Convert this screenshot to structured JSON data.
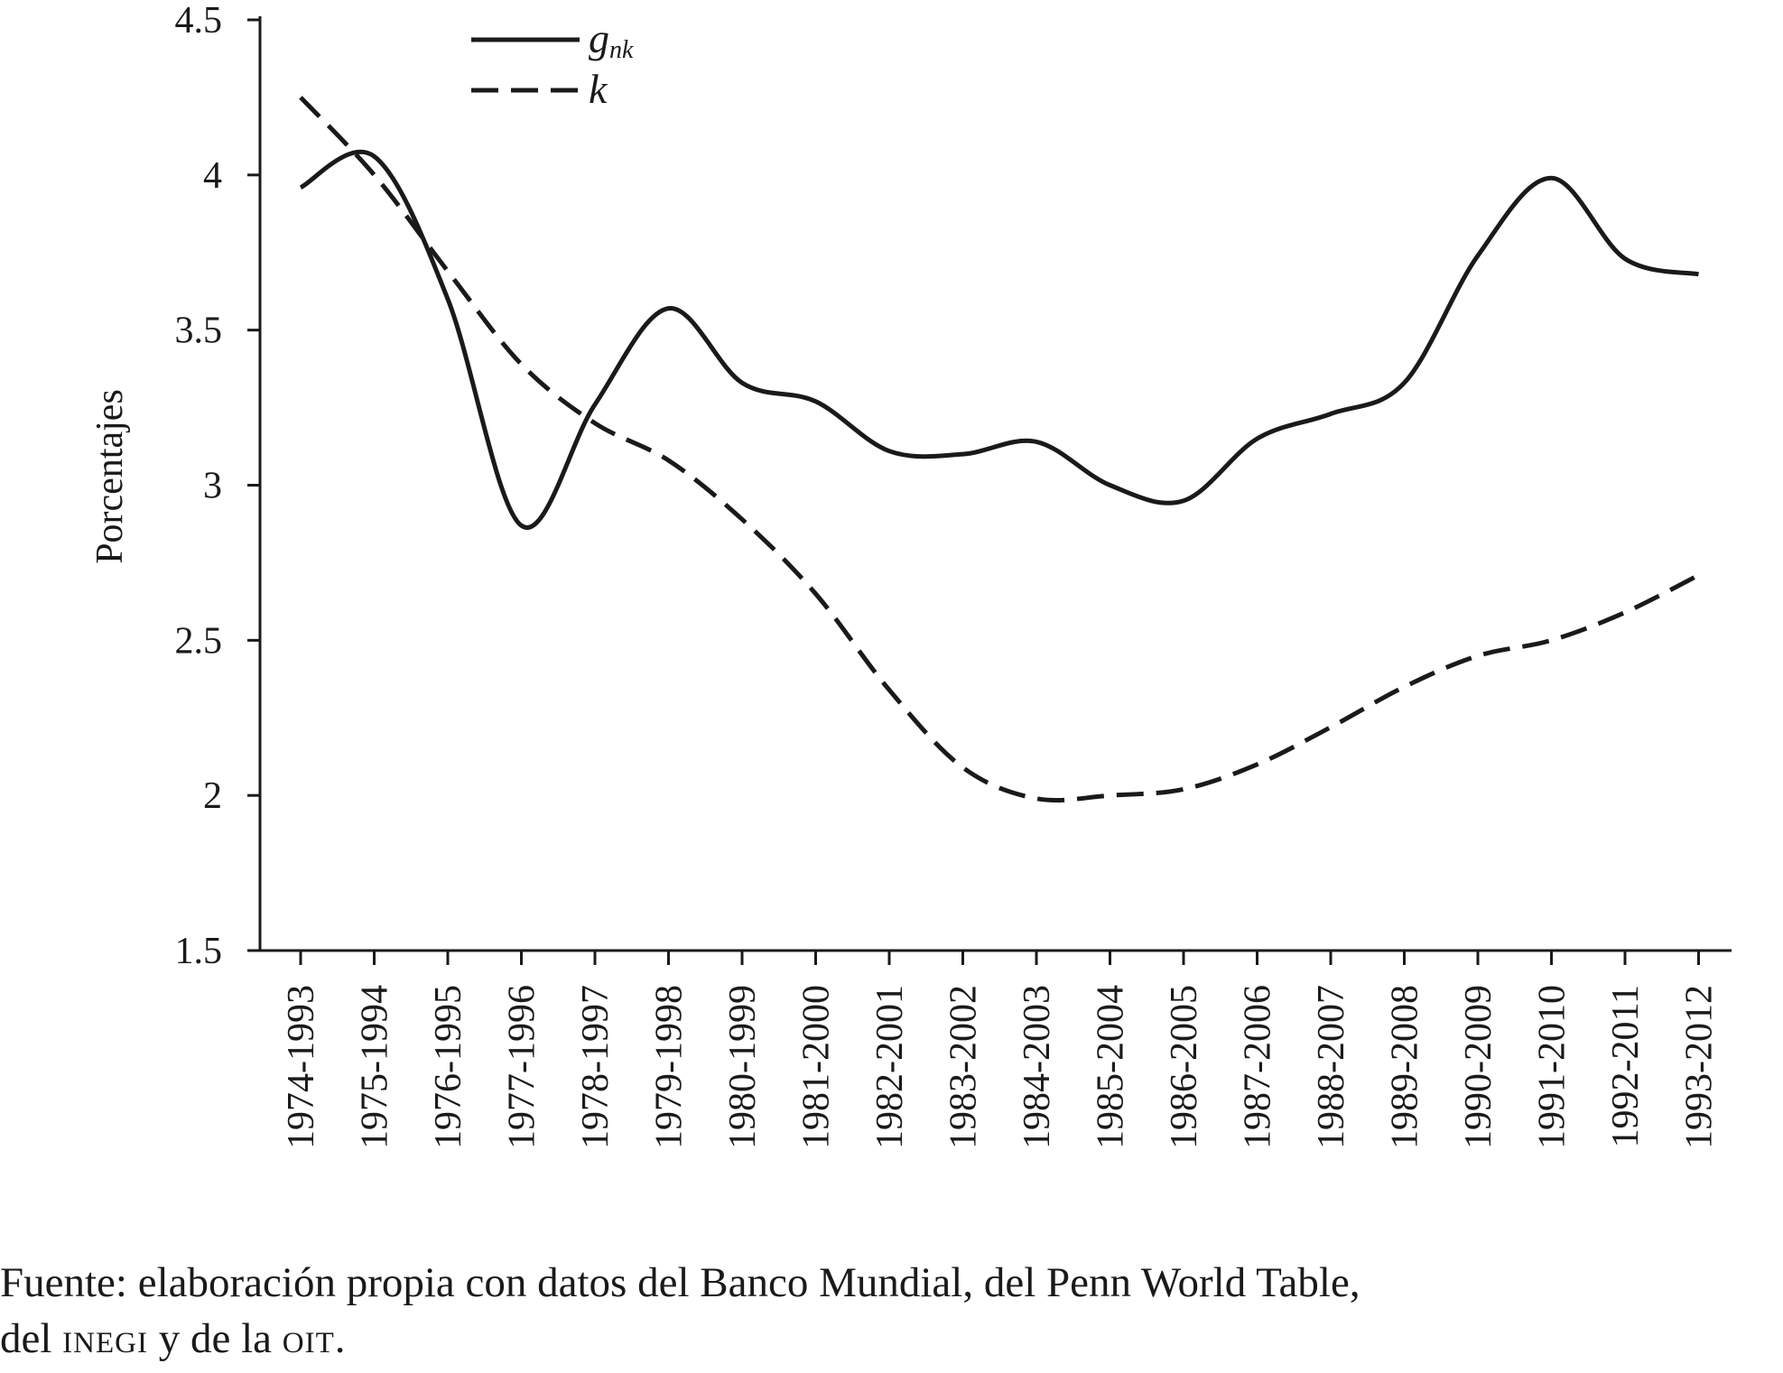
{
  "chart_data": {
    "type": "line",
    "title": "",
    "xlabel": "",
    "ylabel": "Porcentajes",
    "ylim": [
      1.5,
      4.5
    ],
    "yticks": [
      "4.5",
      "4",
      "3.5",
      "3",
      "2.5",
      "2",
      "1.5"
    ],
    "ytick_values": [
      4.5,
      4,
      3.5,
      3,
      2.5,
      2,
      1.5
    ],
    "categories": [
      "1974-1993",
      "1975-1994",
      "1976-1995",
      "1977-1996",
      "1978-1997",
      "1979-1998",
      "1980-1999",
      "1981-2000",
      "1982-2001",
      "1983-2002",
      "1984-2003",
      "1985-2004",
      "1986-2005",
      "1987-2006",
      "1988-2007",
      "1989-2008",
      "1990-2009",
      "1991-2010",
      "1992-2011",
      "1993-2012"
    ],
    "grid": false,
    "legend_position": "top-left",
    "series": [
      {
        "name": "g",
        "subscript": "nk",
        "style": "solid",
        "values": [
          3.96,
          4.06,
          3.6,
          2.87,
          3.26,
          3.57,
          3.33,
          3.27,
          3.11,
          3.1,
          3.14,
          3.0,
          2.95,
          3.15,
          3.23,
          3.33,
          3.74,
          3.99,
          3.73,
          3.68
        ]
      },
      {
        "name": "k",
        "subscript": "",
        "style": "dashed",
        "values": [
          4.25,
          4.0,
          3.69,
          3.39,
          3.2,
          3.08,
          2.89,
          2.65,
          2.34,
          2.09,
          1.99,
          2.0,
          2.02,
          2.1,
          2.22,
          2.35,
          2.45,
          2.5,
          2.59,
          2.71
        ]
      }
    ]
  },
  "source_note": {
    "line1": "Fuente: elaboración propia con datos del Banco Mundial, del Penn World Table,",
    "line2_prefix": "del ",
    "line2_inegi": "INEGI",
    "line2_mid": " y de la ",
    "line2_oit": "OIT",
    "line2_suffix": "."
  }
}
